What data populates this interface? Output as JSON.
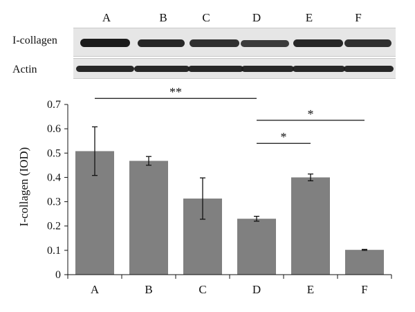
{
  "blot": {
    "lanes": [
      "A",
      "B",
      "C",
      "D",
      "E",
      "F"
    ],
    "rows": [
      {
        "label": "I-collagen",
        "band_intensity": [
          1.0,
          0.95,
          0.9,
          0.85,
          0.95,
          0.9
        ]
      },
      {
        "label": "Actin",
        "band_intensity": [
          0.95,
          0.95,
          0.95,
          0.95,
          0.95,
          0.95
        ]
      }
    ]
  },
  "chart_data": {
    "type": "bar",
    "categories": [
      "A",
      "B",
      "C",
      "D",
      "E",
      "F"
    ],
    "values": [
      0.508,
      0.468,
      0.313,
      0.23,
      0.4,
      0.102
    ],
    "errors": [
      0.1,
      0.018,
      0.085,
      0.01,
      0.014,
      0.002
    ],
    "ylabel": "I-collagen (IOD)",
    "xlabel": "",
    "ylim": [
      0,
      0.7
    ],
    "yticks": [
      "0",
      "0.1",
      "0.2",
      "0.3",
      "0.4",
      "0.5",
      "0.6",
      "0.7"
    ],
    "bar_color": "#808080",
    "grid": false,
    "significance": [
      {
        "from": "A",
        "to": "D",
        "label": "**",
        "y": 0.725
      },
      {
        "from": "D",
        "to": "F",
        "label": "*",
        "y": 0.635
      },
      {
        "from": "D",
        "to": "E",
        "label": "*",
        "y": 0.54
      }
    ]
  }
}
